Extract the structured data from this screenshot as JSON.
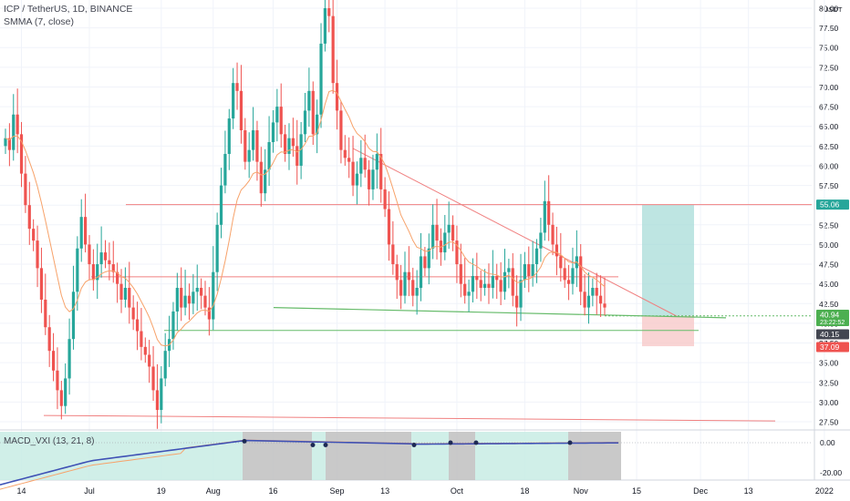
{
  "header": {
    "symbol_line": "ICP / TetherUS, 1D, BINANCE",
    "indicator_line": "SMMA (7, close)"
  },
  "macd_legend": "MACD_VXI (13, 21, 8)",
  "chart_data": {
    "type": "candlestick",
    "currency_label": "USDT",
    "y_ticks": [
      "80.00",
      "77.50",
      "75.00",
      "72.50",
      "70.00",
      "67.50",
      "65.00",
      "62.50",
      "60.00",
      "57.50",
      "55.00",
      "52.50",
      "50.00",
      "47.50",
      "45.00",
      "42.50",
      "40.00",
      "37.50",
      "35.00",
      "32.50",
      "30.00",
      "27.50"
    ],
    "ylim": [
      26.5,
      80.5
    ],
    "x_ticks": [
      {
        "label": "14",
        "date": "2021-06-14"
      },
      {
        "label": "Jul",
        "date": "2021-07-01"
      },
      {
        "label": "19",
        "date": "2021-07-19"
      },
      {
        "label": "Aug",
        "date": "2021-08-01"
      },
      {
        "label": "16",
        "date": "2021-08-16"
      },
      {
        "label": "Sep",
        "date": "2021-09-01"
      },
      {
        "label": "13",
        "date": "2021-09-13"
      },
      {
        "label": "Oct",
        "date": "2021-10-01"
      },
      {
        "label": "18",
        "date": "2021-10-18"
      },
      {
        "label": "Nov",
        "date": "2021-11-01"
      },
      {
        "label": "15",
        "date": "2021-11-15"
      },
      {
        "label": "Dec",
        "date": "2021-12-01"
      },
      {
        "label": "13",
        "date": "2021-12-13"
      },
      {
        "label": "2022",
        "date": "2022-01-01"
      }
    ],
    "start_date": "2021-06-10",
    "candles_close": [
      63.5,
      62.0,
      66.5,
      64.0,
      59.0,
      55.0,
      52.0,
      50.5,
      47.0,
      43.0,
      39.5,
      36.5,
      34.0,
      31.5,
      29.5,
      33.0,
      38.0,
      44.0,
      49.5,
      53.5,
      50.0,
      47.5,
      45.5,
      47.5,
      49.0,
      48.0,
      47.5,
      46.5,
      45.0,
      43.0,
      44.5,
      42.0,
      40.5,
      39.0,
      37.0,
      36.0,
      34.5,
      31.5,
      29.0,
      33.0,
      36.5,
      38.0,
      41.5,
      44.5,
      42.0,
      43.5,
      42.5,
      44.0,
      44.5,
      43.5,
      42.0,
      40.5,
      46.5,
      52.5,
      57.5,
      61.5,
      66.0,
      70.5,
      69.5,
      64.5,
      60.5,
      62.0,
      64.5,
      60.5,
      56.5,
      59.5,
      63.0,
      65.5,
      67.5,
      64.0,
      61.5,
      63.5,
      62.5,
      60.0,
      64.0,
      67.0,
      69.5,
      64.0,
      66.5,
      75.5,
      80.0,
      79.0,
      70.5,
      67.0,
      62.0,
      61.0,
      60.5,
      57.5,
      59.0,
      61.0,
      59.5,
      57.0,
      59.5,
      61.5,
      57.0,
      54.5,
      50.0,
      47.5,
      45.5,
      43.5,
      46.5,
      45.5,
      43.5,
      44.5,
      48.5,
      47.0,
      49.5,
      52.5,
      50.5,
      49.0,
      51.5,
      52.5,
      50.5,
      47.5,
      45.0,
      43.5,
      44.0,
      46.0,
      45.5,
      44.5,
      45.0,
      44.5,
      46.0,
      45.5,
      44.0,
      46.5,
      47.0,
      43.5,
      42.0,
      45.5,
      47.5,
      46.0,
      47.5,
      49.5,
      51.5,
      55.5,
      52.5,
      50.0,
      48.5,
      47.0,
      45.5,
      45.0,
      47.0,
      48.5,
      44.0,
      42.0,
      43.5,
      44.5,
      43.5,
      42.5,
      42.0
    ],
    "series": [
      {
        "name": "SMMA (7, close)"
      },
      {
        "name": "MACD_VXI (13, 21, 8)"
      }
    ],
    "price_labels": [
      {
        "value": "55.06",
        "color": "#26a69a"
      },
      {
        "value": "40.94",
        "sub": "23:22:52",
        "color": "#4caf50"
      },
      {
        "value": "40.15",
        "color": "#434651"
      },
      {
        "value": "37.09",
        "color": "#ef5350"
      }
    ],
    "macd_ticks": [
      "0.00",
      "-20.00"
    ]
  },
  "colors": {
    "up": "#26a69a",
    "down": "#ef5350",
    "smma": "#f7a26a",
    "resistance": "#f08080",
    "support": "#66bb6a",
    "target": "#a8dcd8",
    "stop": "#f8c9c9",
    "macd_green": "#c8ece4",
    "macd_gray": "#c0c0c0"
  }
}
